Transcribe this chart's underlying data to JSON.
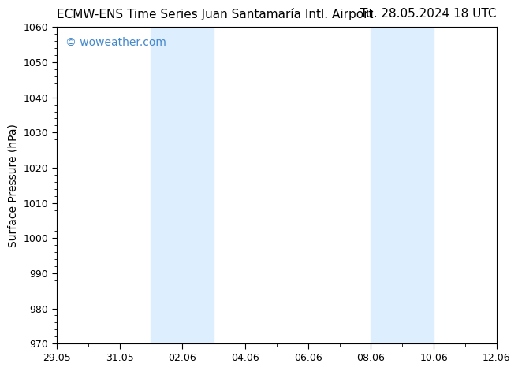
{
  "title_left": "ECMW-ENS Time Series Juan Santamaría Intl. Airport",
  "title_right": "Tu. 28.05.2024 18 UTC",
  "ylabel": "Surface Pressure (hPa)",
  "ylim": [
    970,
    1060
  ],
  "yticks": [
    970,
    980,
    990,
    1000,
    1010,
    1020,
    1030,
    1040,
    1050,
    1060
  ],
  "x_start_num": 0,
  "x_end_num": 14,
  "xtick_labels": [
    "29.05",
    "31.05",
    "02.06",
    "04.06",
    "06.06",
    "08.06",
    "10.06",
    "12.06"
  ],
  "xtick_positions": [
    0,
    2,
    4,
    6,
    8,
    10,
    12,
    14
  ],
  "shaded_bands": [
    {
      "x_start": 3.0,
      "x_end": 5.0
    },
    {
      "x_start": 10.0,
      "x_end": 12.0
    }
  ],
  "shaded_color": "#ddeeff",
  "bg_color": "#ffffff",
  "plot_bg_color": "#ffffff",
  "watermark": "© woweather.com",
  "watermark_color": "#4488cc",
  "title_fontsize": 11,
  "tick_fontsize": 9,
  "ylabel_fontsize": 10,
  "watermark_fontsize": 10
}
